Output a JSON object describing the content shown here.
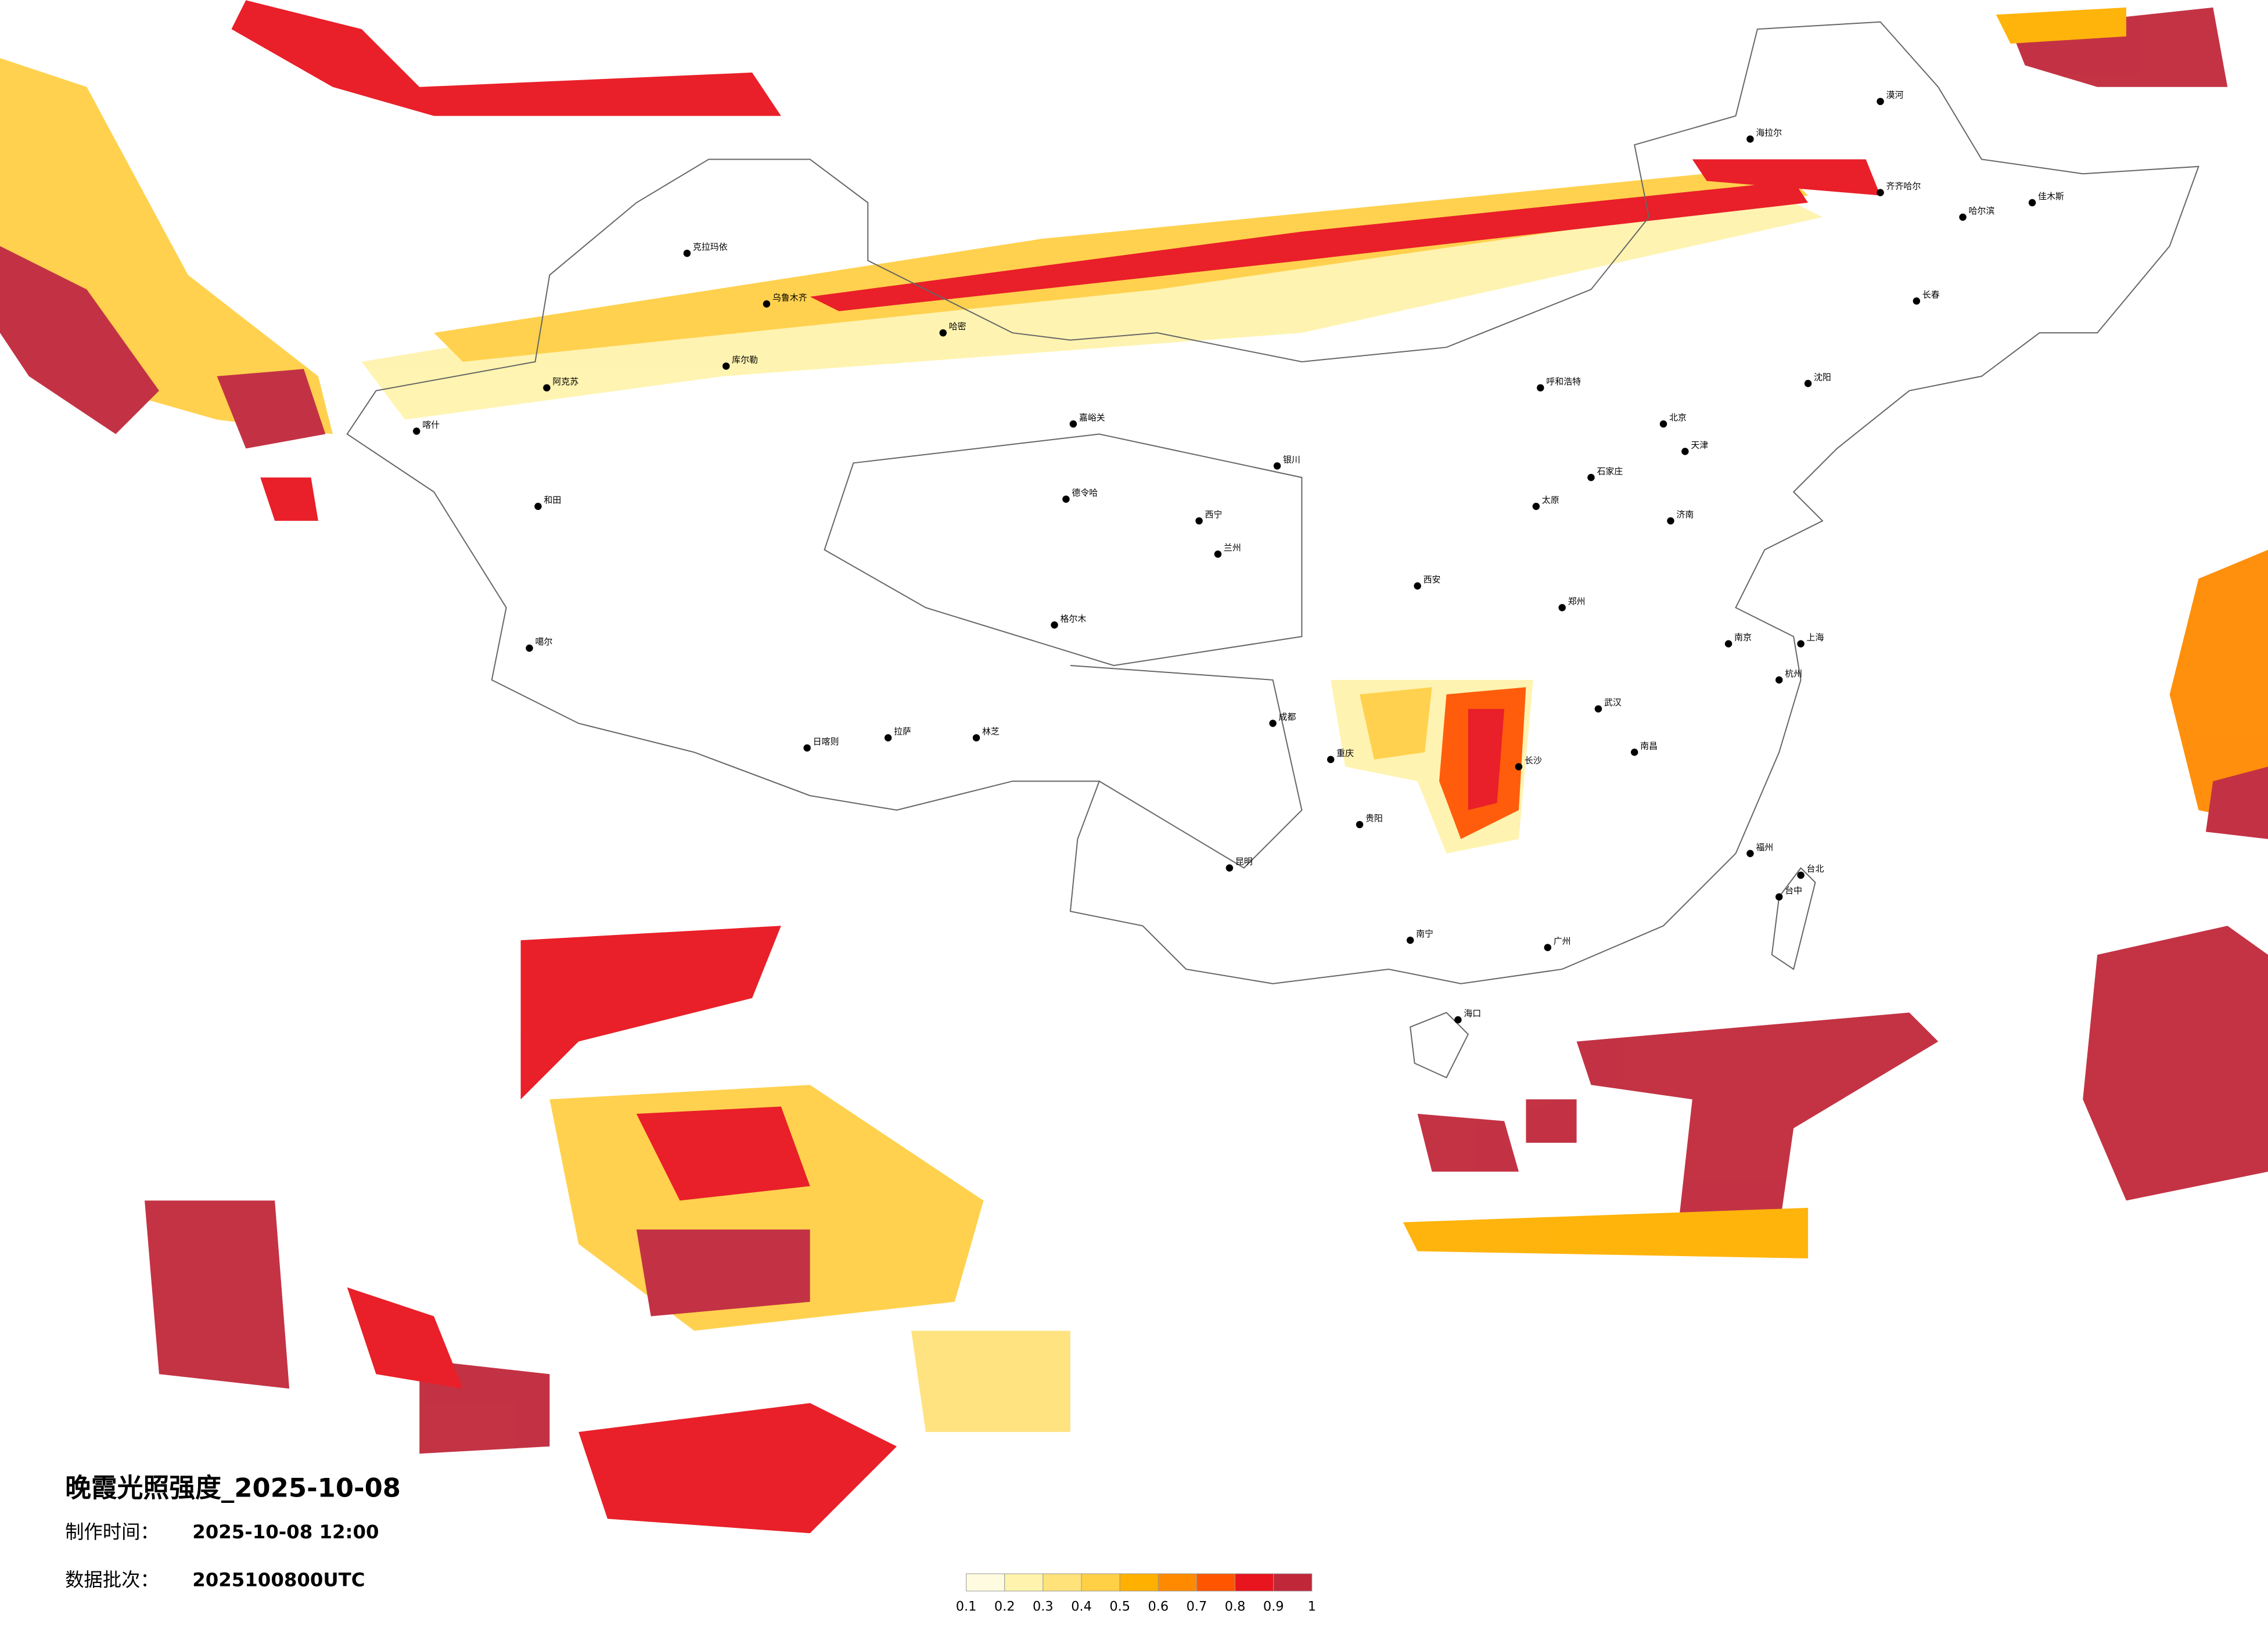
{
  "map": {
    "title": "晚霞光照强度_2025-10-08",
    "made_label": "制作时间：",
    "made_time": "2025-10-08 12:00",
    "batch_label": "数据批次：",
    "batch": "2025100800UTC",
    "cities": [
      "漠河",
      "海拉尔",
      "齐齐哈尔",
      "哈尔滨",
      "佳木斯",
      "长春",
      "沈阳",
      "呼和浩特",
      "北京",
      "天津",
      "石家庄",
      "太原",
      "济南",
      "郑州",
      "西安",
      "银川",
      "兰州",
      "西宁",
      "嘉峪关",
      "德令哈",
      "格尔木",
      "克拉玛依",
      "乌鲁木齐",
      "哈密",
      "库尔勒",
      "阿克苏",
      "喀什",
      "和田",
      "噶尔",
      "日喀则",
      "拉萨",
      "林芝",
      "成都",
      "重庆",
      "贵阳",
      "昆明",
      "南宁",
      "广州",
      "海口",
      "长沙",
      "武汉",
      "南昌",
      "南京",
      "上海",
      "杭州",
      "福州",
      "台北",
      "台中"
    ]
  },
  "legend": {
    "ticks": [
      0.1,
      0.2,
      0.3,
      0.4,
      0.5,
      0.6,
      0.7,
      0.8,
      0.9,
      1
    ],
    "colors": [
      "#fffbe0",
      "#fff3ad",
      "#ffe27a",
      "#ffcf45",
      "#ffb000",
      "#ff8a00",
      "#ff5500",
      "#e8141e",
      "#c0283a"
    ]
  }
}
